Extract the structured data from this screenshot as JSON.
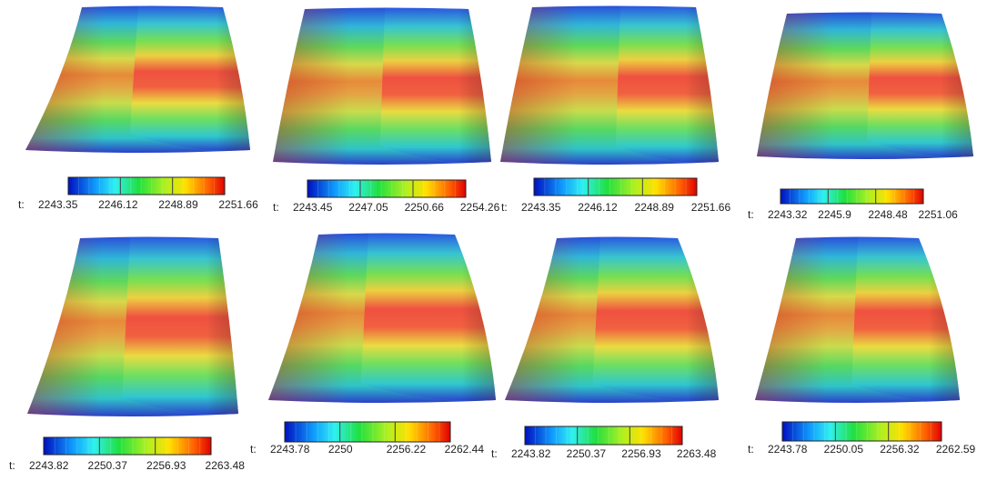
{
  "panels": [
    {
      "prefix": "t:",
      "ticks": [
        "2243.35",
        "2246.12",
        "2248.89",
        "2251.66"
      ]
    },
    {
      "prefix": "t:",
      "ticks": [
        "2243.45",
        "2247.05",
        "2250.66",
        "2254.26"
      ]
    },
    {
      "prefix": "t:",
      "ticks": [
        "2243.35",
        "2246.12",
        "2248.89",
        "2251.66"
      ]
    },
    {
      "prefix": "t:",
      "ticks": [
        "2243.32",
        "2245.9",
        "2248.48",
        "2251.06"
      ]
    },
    {
      "prefix": "t:",
      "ticks": [
        "2243.82",
        "2250.37",
        "2256.93",
        "2263.48"
      ]
    },
    {
      "prefix": "t:",
      "ticks": [
        "2243.78",
        "2250",
        "2256.22",
        "2262.44"
      ]
    },
    {
      "prefix": "t:",
      "ticks": [
        "2243.82",
        "2250.37",
        "2256.93",
        "2263.48"
      ]
    },
    {
      "prefix": "t:",
      "ticks": [
        "2243.78",
        "2250.05",
        "2256.32",
        "2262.59"
      ]
    }
  ]
}
